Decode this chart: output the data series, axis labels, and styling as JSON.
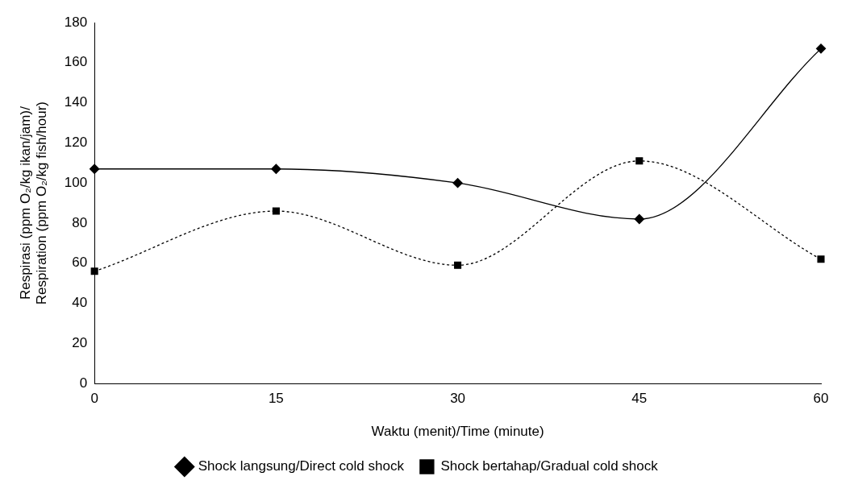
{
  "chart_data": {
    "type": "line",
    "xlabel": "Waktu (menit)/Time (minute)",
    "ylabel": "Respirasi (ppm O₂/kg ikan/jam)/\nRespiration (ppm O₂/kg fish/hour)",
    "x": [
      0,
      15,
      30,
      45,
      60
    ],
    "xlim": [
      0,
      60
    ],
    "xticks": [
      0,
      15,
      30,
      45,
      60
    ],
    "ylim": [
      0,
      180
    ],
    "yticks": [
      0,
      20,
      40,
      60,
      80,
      100,
      120,
      140,
      160,
      180
    ],
    "grid": false,
    "legend": "bottom",
    "series": [
      {
        "name": "Shock langsung/Direct cold shock",
        "color": "#000000",
        "marker": "diamond",
        "line_style": "solid",
        "values": [
          107,
          107,
          100,
          82,
          167
        ]
      },
      {
        "name": "Shock bertahap/Gradual cold shock",
        "color": "#000000",
        "marker": "square",
        "line_style": "dotted",
        "values": [
          56,
          86,
          59,
          111,
          62
        ]
      }
    ]
  }
}
